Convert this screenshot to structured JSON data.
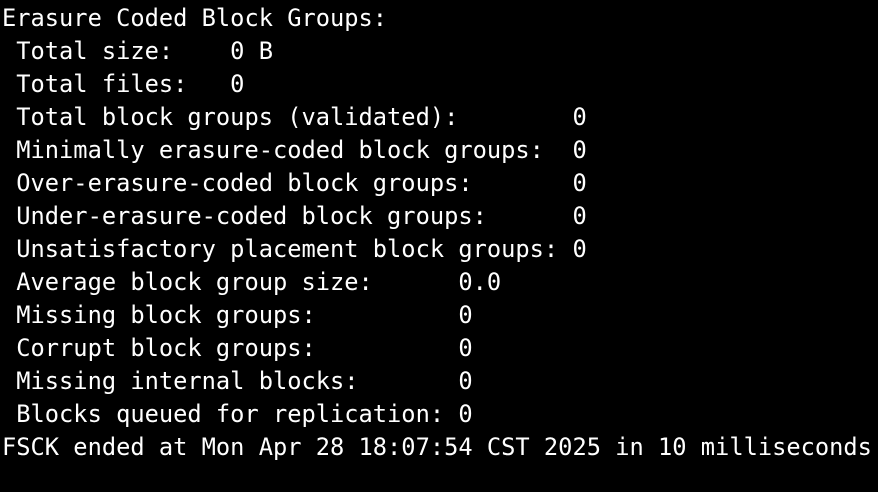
{
  "colors": {
    "background": "#000000",
    "foreground": "#ffffff"
  },
  "terminal": {
    "lines": [
      {
        "text": "Erasure Coded Block Groups:"
      },
      {
        "text": " Total size:    0 B"
      },
      {
        "text": " Total files:   0"
      },
      {
        "text": " Total block groups (validated):        0"
      },
      {
        "text": " Minimally erasure-coded block groups:  0"
      },
      {
        "text": " Over-erasure-coded block groups:       0"
      },
      {
        "text": " Under-erasure-coded block groups:      0"
      },
      {
        "text": " Unsatisfactory placement block groups: 0"
      },
      {
        "text": " Average block group size:      0.0"
      },
      {
        "text": " Missing block groups:          0"
      },
      {
        "text": " Corrupt block groups:          0"
      },
      {
        "text": " Missing internal blocks:       0"
      },
      {
        "text": " Blocks queued for replication: 0"
      },
      {
        "text": "FSCK ended at Mon Apr 28 18:07:54 CST 2025 in 10 milliseconds"
      }
    ]
  },
  "report": {
    "section_title": "Erasure Coded Block Groups:",
    "stats": [
      {
        "label": "Total size",
        "value": "0 B"
      },
      {
        "label": "Total files",
        "value": "0"
      },
      {
        "label": "Total block groups (validated)",
        "value": "0"
      },
      {
        "label": "Minimally erasure-coded block groups",
        "value": "0"
      },
      {
        "label": "Over-erasure-coded block groups",
        "value": "0"
      },
      {
        "label": "Under-erasure-coded block groups",
        "value": "0"
      },
      {
        "label": "Unsatisfactory placement block groups",
        "value": "0"
      },
      {
        "label": "Average block group size",
        "value": "0.0"
      },
      {
        "label": "Missing block groups",
        "value": "0"
      },
      {
        "label": "Corrupt block groups",
        "value": "0"
      },
      {
        "label": "Missing internal blocks",
        "value": "0"
      },
      {
        "label": "Blocks queued for replication",
        "value": "0"
      }
    ],
    "footer": "FSCK ended at Mon Apr 28 18:07:54 CST 2025 in 10 milliseconds"
  }
}
